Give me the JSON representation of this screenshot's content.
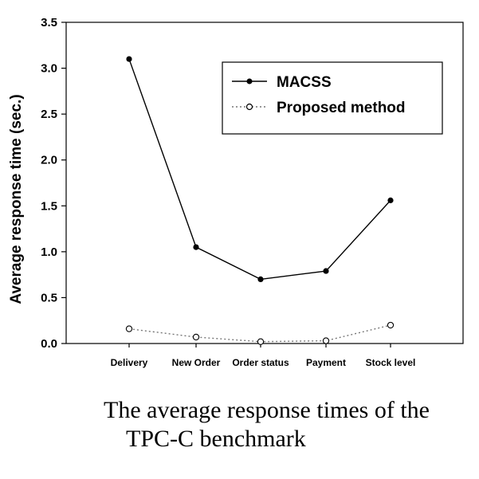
{
  "chart_data": {
    "type": "line",
    "categories": [
      "Delivery",
      "New Order",
      "Order status",
      "Payment",
      "Stock level"
    ],
    "series": [
      {
        "name": "MACSS",
        "values": [
          3.1,
          1.05,
          0.7,
          0.79,
          1.56
        ],
        "color": "#000000",
        "line_style": "solid",
        "marker": "filled-circle"
      },
      {
        "name": "Proposed method",
        "values": [
          0.16,
          0.07,
          0.02,
          0.03,
          0.2
        ],
        "color": "#777777",
        "line_style": "dotted",
        "marker": "open-circle"
      }
    ],
    "ylabel": "Average response time (sec.)",
    "xlabel": "",
    "ylim": [
      0,
      3.5
    ],
    "yticks": [
      "0.0",
      "0.5",
      "1.0",
      "1.5",
      "2.0",
      "2.5",
      "3.0",
      "3.5"
    ],
    "grid": false,
    "legend_position": "top-right"
  },
  "caption": {
    "line1": "The average response times of the",
    "line2": "TPC-C benchmark"
  }
}
